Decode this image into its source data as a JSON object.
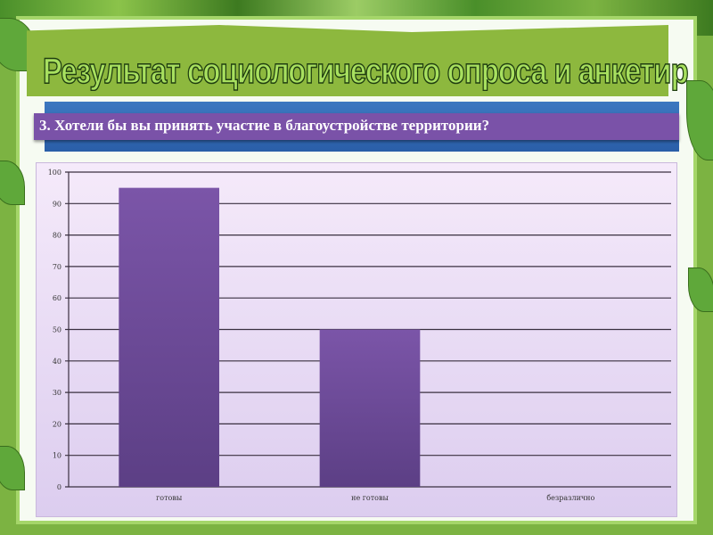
{
  "slide": {
    "title": "Результат социологического опроса и анкетир",
    "question": "3. Хотели бы вы принять участие в благоустройстве  территории?"
  },
  "colors": {
    "bar": "#6a4a96",
    "question_bg": "#7a52a8",
    "title_fill": "#a8e05f",
    "banner": "#8db83e"
  },
  "chart_data": {
    "type": "bar",
    "categories": [
      "готовы",
      "не готовы",
      "безразлично"
    ],
    "values": [
      95,
      50,
      0
    ],
    "ylim": [
      0,
      100
    ],
    "yticks": [
      0,
      10,
      20,
      30,
      40,
      50,
      60,
      70,
      80,
      90,
      100
    ],
    "grid": true,
    "legend": "none"
  }
}
